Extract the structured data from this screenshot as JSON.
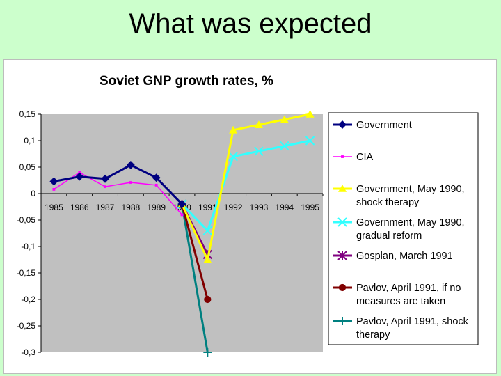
{
  "slide": {
    "title": "What was expected"
  },
  "chart_data": {
    "type": "line",
    "title": "Soviet GNP growth rates, %",
    "xlabel": "",
    "ylabel": "",
    "ylim": [
      -0.3,
      0.15
    ],
    "yticks": [
      0.15,
      0.1,
      0.05,
      0,
      -0.05,
      -0.1,
      -0.15,
      -0.2,
      -0.25,
      -0.3
    ],
    "ytick_labels": [
      "0,15",
      "0,1",
      "0,05",
      "0",
      "-0,05",
      "-0,1",
      "-0,15",
      "-0,2",
      "-0,25",
      "-0,3"
    ],
    "categories": [
      "1985",
      "1986",
      "1987",
      "1988",
      "1989",
      "1990",
      "1991",
      "1992",
      "1993",
      "1994",
      "1995"
    ],
    "grid": false,
    "legend_position": "right",
    "series": [
      {
        "name": "Government",
        "color": "#000080",
        "marker": "diamond",
        "values": [
          0.023,
          0.032,
          0.028,
          0.054,
          0.03,
          -0.02,
          null,
          null,
          null,
          null,
          null
        ]
      },
      {
        "name": "CIA",
        "color": "#ff00ff",
        "marker": "square",
        "values": [
          0.008,
          0.04,
          0.013,
          0.021,
          0.016,
          -0.04,
          null,
          null,
          null,
          null,
          null
        ]
      },
      {
        "name": "Government, May 1990, shock therapy",
        "color": "#ffff00",
        "marker": "triangle",
        "values": [
          null,
          null,
          null,
          null,
          null,
          -0.02,
          -0.125,
          0.12,
          0.13,
          0.14,
          0.15
        ]
      },
      {
        "name": "Government, May 1990, gradual reform",
        "color": "#33ffff",
        "marker": "x",
        "values": [
          null,
          null,
          null,
          null,
          null,
          -0.02,
          -0.07,
          0.07,
          0.08,
          0.09,
          0.1
        ]
      },
      {
        "name": "Gosplan, March 1991",
        "color": "#800080",
        "marker": "star",
        "values": [
          null,
          null,
          null,
          null,
          null,
          -0.02,
          -0.115,
          null,
          null,
          null,
          null
        ]
      },
      {
        "name": "Pavlov, April 1991, if no measures are taken",
        "color": "#800000",
        "marker": "circle",
        "values": [
          null,
          null,
          null,
          null,
          null,
          -0.02,
          -0.2,
          null,
          null,
          null,
          null
        ]
      },
      {
        "name": "Pavlov, April 1991, shock therapy",
        "color": "#008080",
        "marker": "plus",
        "values": [
          null,
          null,
          null,
          null,
          null,
          -0.02,
          -0.3,
          null,
          null,
          null,
          null
        ]
      }
    ],
    "legend_labels": [
      [
        "Government"
      ],
      [
        "CIA"
      ],
      [
        "Government, May 1990,",
        "shock therapy"
      ],
      [
        "Government, May 1990,",
        "gradual reform"
      ],
      [
        "Gosplan, March 1991"
      ],
      [
        "Pavlov, April 1991, if no",
        "measures are taken"
      ],
      [
        "Pavlov, April 1991, shock",
        "therapy"
      ]
    ]
  }
}
